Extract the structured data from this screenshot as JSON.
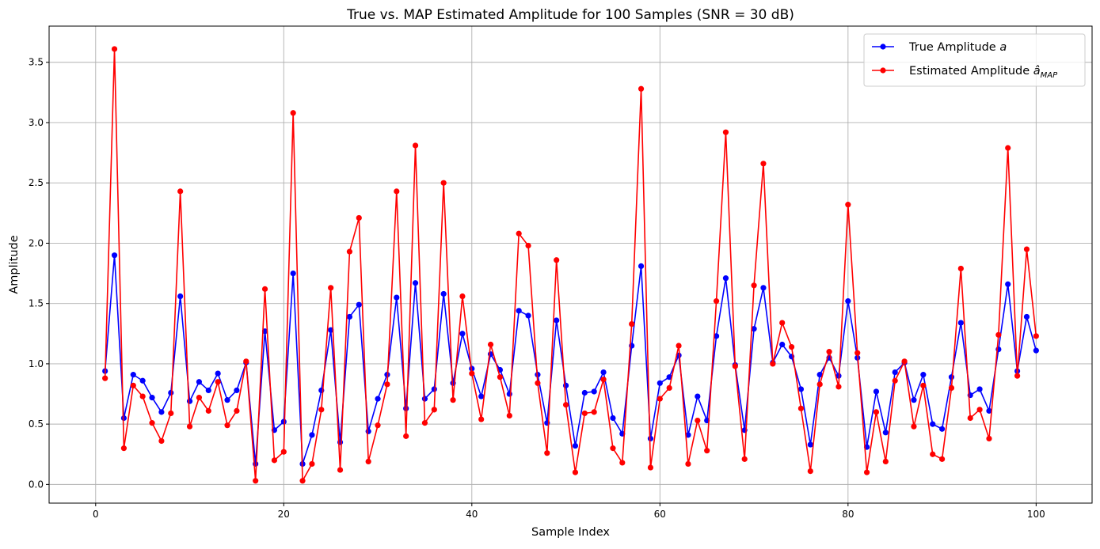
{
  "chart_data": {
    "type": "line",
    "title": "True vs. MAP Estimated Amplitude for 100 Samples (SNR = 30 dB)",
    "xlabel": "Sample Index",
    "ylabel": "Amplitude",
    "xlim": [
      -4.95,
      105.95
    ],
    "ylim": [
      -0.155,
      3.8
    ],
    "xticks": [
      0,
      20,
      40,
      60,
      80,
      100
    ],
    "yticks": [
      0.0,
      0.5,
      1.0,
      1.5,
      2.0,
      2.5,
      3.0,
      3.5
    ],
    "xtick_labels": [
      "0",
      "20",
      "40",
      "60",
      "80",
      "100"
    ],
    "ytick_labels": [
      "0.0",
      "0.5",
      "1.0",
      "1.5",
      "2.0",
      "2.5",
      "3.0",
      "3.5"
    ],
    "grid": true,
    "legend_position": "top-right",
    "x": [
      1,
      2,
      3,
      4,
      5,
      6,
      7,
      8,
      9,
      10,
      11,
      12,
      13,
      14,
      15,
      16,
      17,
      18,
      19,
      20,
      21,
      22,
      23,
      24,
      25,
      26,
      27,
      28,
      29,
      30,
      31,
      32,
      33,
      34,
      35,
      36,
      37,
      38,
      39,
      40,
      41,
      42,
      43,
      44,
      45,
      46,
      47,
      48,
      49,
      50,
      51,
      52,
      53,
      54,
      55,
      56,
      57,
      58,
      59,
      60,
      61,
      62,
      63,
      64,
      65,
      66,
      67,
      68,
      69,
      70,
      71,
      72,
      73,
      74,
      75,
      76,
      77,
      78,
      79,
      80,
      81,
      82,
      83,
      84,
      85,
      86,
      87,
      88,
      89,
      90,
      91,
      92,
      93,
      94,
      95,
      96,
      97,
      98,
      99,
      100
    ],
    "series": [
      {
        "name": "True Amplitude a",
        "legend_main": "True Amplitude ",
        "legend_math": "a",
        "color": "#0000ff",
        "values": [
          0.94,
          1.9,
          0.55,
          0.91,
          0.86,
          0.72,
          0.6,
          0.76,
          1.56,
          0.69,
          0.85,
          0.78,
          0.92,
          0.7,
          0.78,
          1.01,
          0.17,
          1.27,
          0.45,
          0.52,
          1.75,
          0.17,
          0.41,
          0.78,
          1.28,
          0.35,
          1.39,
          1.49,
          0.44,
          0.71,
          0.91,
          1.55,
          0.63,
          1.67,
          0.71,
          0.79,
          1.58,
          0.84,
          1.25,
          0.96,
          0.73,
          1.08,
          0.95,
          0.75,
          1.44,
          1.4,
          0.91,
          0.51,
          1.36,
          0.82,
          0.32,
          0.76,
          0.77,
          0.93,
          0.55,
          0.42,
          1.15,
          1.81,
          0.38,
          0.84,
          0.89,
          1.07,
          0.41,
          0.73,
          0.53,
          1.23,
          1.71,
          0.99,
          0.45,
          1.29,
          1.63,
          1.01,
          1.16,
          1.06,
          0.79,
          0.33,
          0.91,
          1.05,
          0.9,
          1.52,
          1.05,
          0.31,
          0.77,
          0.43,
          0.93,
          1.01,
          0.7,
          0.91,
          0.5,
          0.46,
          0.89,
          1.34,
          0.74,
          0.79,
          0.61,
          1.12,
          1.66,
          0.94,
          1.39,
          1.11
        ]
      },
      {
        "name": "Estimated Amplitude â_MAP",
        "legend_main": "Estimated Amplitude ",
        "legend_math": "â",
        "legend_sub": "MAP",
        "color": "#ff0000",
        "values": [
          0.88,
          3.61,
          0.3,
          0.82,
          0.73,
          0.51,
          0.36,
          0.59,
          2.43,
          0.48,
          0.72,
          0.61,
          0.85,
          0.49,
          0.61,
          1.02,
          0.03,
          1.62,
          0.2,
          0.27,
          3.08,
          0.03,
          0.17,
          0.62,
          1.63,
          0.12,
          1.93,
          2.21,
          0.19,
          0.49,
          0.83,
          2.43,
          0.4,
          2.81,
          0.51,
          0.62,
          2.5,
          0.7,
          1.56,
          0.92,
          0.54,
          1.16,
          0.89,
          0.57,
          2.08,
          1.98,
          0.84,
          0.26,
          1.86,
          0.66,
          0.1,
          0.59,
          0.6,
          0.87,
          0.3,
          0.18,
          1.33,
          3.28,
          0.14,
          0.71,
          0.8,
          1.15,
          0.17,
          0.53,
          0.28,
          1.52,
          2.92,
          0.98,
          0.21,
          1.65,
          2.66,
          1.0,
          1.34,
          1.14,
          0.63,
          0.11,
          0.83,
          1.1,
          0.81,
          2.32,
          1.09,
          0.1,
          0.6,
          0.19,
          0.86,
          1.02,
          0.48,
          0.82,
          0.25,
          0.21,
          0.8,
          1.79,
          0.55,
          0.62,
          0.38,
          1.24,
          2.79,
          0.9,
          1.95,
          1.23
        ]
      }
    ]
  }
}
